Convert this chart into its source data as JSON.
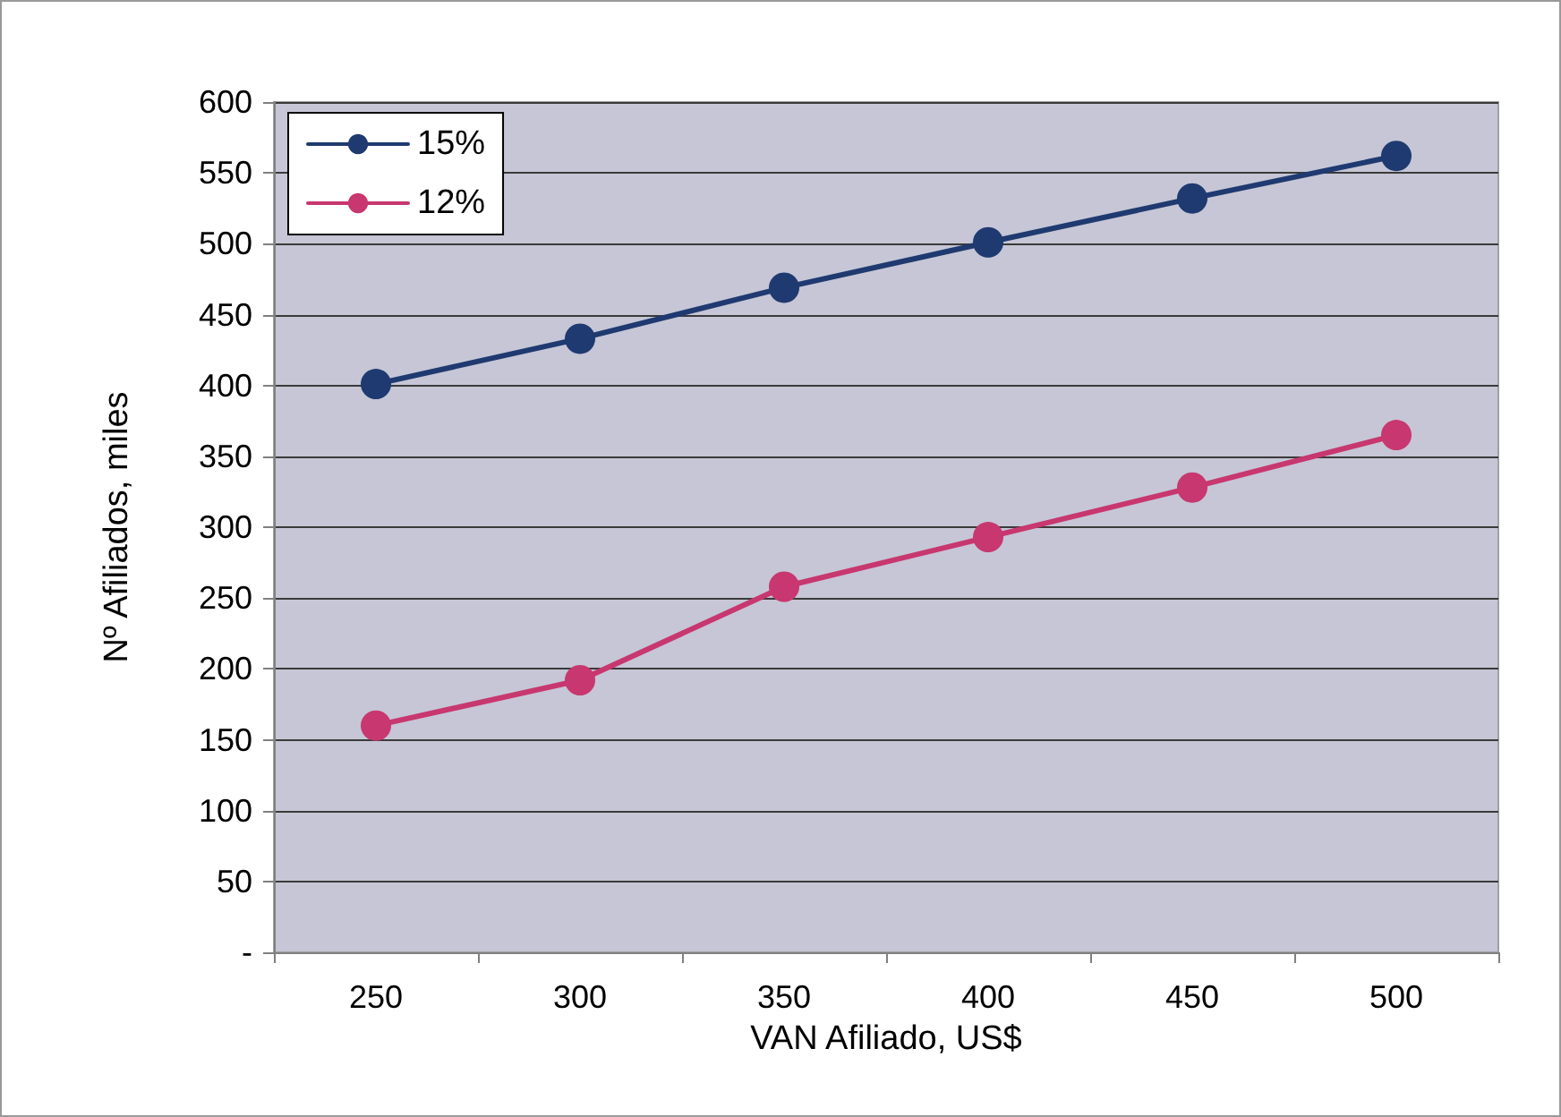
{
  "chart_data": {
    "type": "line",
    "xlabel": "VAN Afiliado, US$",
    "ylabel": "Nº Afiliados, miles",
    "categories": [
      "250",
      "300",
      "350",
      "400",
      "450",
      "500"
    ],
    "series": [
      {
        "name": "15%",
        "color": "#1f3a70",
        "values": [
          401,
          433,
          469,
          501,
          532,
          562
        ]
      },
      {
        "name": "12%",
        "color": "#c8376f",
        "values": [
          160,
          192,
          258,
          293,
          328,
          365
        ]
      }
    ],
    "ylim": [
      0,
      600
    ],
    "yticks": [
      {
        "value": 0,
        "label": "-"
      },
      50,
      100,
      150,
      200,
      250,
      300,
      350,
      400,
      450,
      500,
      550,
      600
    ],
    "grid": "y",
    "legend": "top left",
    "marker": "circle",
    "line_style": "solid"
  }
}
